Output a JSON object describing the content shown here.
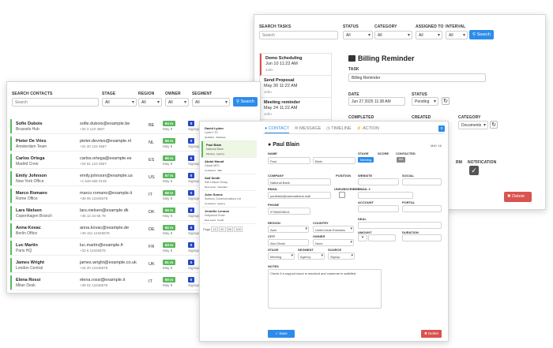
{
  "tasks_panel": {
    "search_label": "SEARCH TASKS",
    "search_placeholder": "Search",
    "status_label": "STATUS",
    "status_value": "All",
    "category_label": "CATEGORY",
    "category_value": "All",
    "assigned_label": "ASSIGNED TO",
    "assigned_value": "All",
    "interval_label": "INTERVAL",
    "interval_value": "All",
    "search_button": "Search",
    "items": [
      {
        "title": "Demo Scheduling",
        "date": "Jun 10 11:22 AM",
        "user": "John"
      },
      {
        "title": "Send Proposal",
        "date": "May 30 11:22 AM",
        "user": "John"
      },
      {
        "title": "Meeting reminder",
        "date": "May 24 11:22 AM",
        "user": "John"
      },
      {
        "title": "",
        "date": "",
        "user": ""
      }
    ],
    "detail_title": "Billing Reminder",
    "task_label": "TASK",
    "task_value": "Billing Reminder",
    "date_label": "DATE",
    "date_value": "Jun 27 2025 11:38 AM",
    "status2_label": "STATUS",
    "status2_value": "Pending",
    "completed_label": "COMPLETED",
    "created_label": "CREATED",
    "category2_label": "CATEGORY",
    "category2_value": "Documents",
    "notification_label": "NOTIFICATION",
    "partial_label": "RM",
    "delete_button": "Delete",
    "accent": "#d9534f"
  },
  "contacts_panel": {
    "search_label": "SEARCH CONTACTS",
    "search_placeholder": "Search",
    "stage_label": "STAGE",
    "stage_value": "All",
    "region_label": "REGION",
    "region_value": "All",
    "owner_label": "OWNER",
    "owner_value": "All",
    "segment_label": "SEGMENT",
    "segment_value": "All",
    "search_button": "Search",
    "rows": [
      {
        "name": "Sofie Dubois",
        "office": "Brussels Hub",
        "email": "sofie.dubois@example.be",
        "phone": "+32 2 123 4567",
        "country": "BE",
        "days": "64 m",
        "date": "May 8",
        "assigned": "0",
        "segment": "Signup"
      },
      {
        "name": "Pieter De Vries",
        "office": "Amsterdam Team",
        "email": "pieter.devries@example.nl",
        "phone": "+31 20 123 4567",
        "country": "NL",
        "days": "65 m",
        "date": "May 8",
        "assigned": "0",
        "segment": "Signup"
      },
      {
        "name": "Carlos Ortega",
        "office": "Madrid Crew",
        "email": "carlos.ortega@example.es",
        "phone": "+34 91 123 4567",
        "country": "ES",
        "days": "66 m",
        "date": "May 8",
        "assigned": "0",
        "segment": "Signup"
      },
      {
        "name": "Emily Johnson",
        "office": "New York Office",
        "email": "emily.johnson@example.us",
        "phone": "+1 646 555 0148",
        "country": "US",
        "days": "67 m",
        "date": "May 8",
        "assigned": "0",
        "segment": "Signup"
      },
      {
        "name": "Marco Romano",
        "office": "Rome Office",
        "email": "marco.romano@example.it",
        "phone": "+39 06 12345678",
        "country": "IT",
        "days": "68 m",
        "date": "May 8",
        "assigned": "0",
        "segment": "Signup"
      },
      {
        "name": "Lars Nielsen",
        "office": "Copenhagen Branch",
        "email": "lars.nielsen@example.dk",
        "phone": "+45 12 34 56 78",
        "country": "DK",
        "days": "69 m",
        "date": "May 8",
        "assigned": "0",
        "segment": "Signup"
      },
      {
        "name": "Anna Kovac",
        "office": "Berlin Office",
        "email": "anna.kovac@example.de",
        "phone": "+49 151 12345678",
        "country": "DE",
        "days": "62 m",
        "date": "May 8",
        "assigned": "0",
        "segment": "Signup"
      },
      {
        "name": "Luc Martin",
        "office": "Paris HQ",
        "email": "luc.martin@example.fr",
        "phone": "+33 6 12345678",
        "country": "FR",
        "days": "63 m",
        "date": "May 8",
        "assigned": "0",
        "segment": "Signup"
      },
      {
        "name": "James Wright",
        "office": "London Central",
        "email": "james.wright@example.co.uk",
        "phone": "+44 20 12345678",
        "country": "UK",
        "days": "61 m",
        "date": "May 8",
        "assigned": "0",
        "segment": "Signup"
      },
      {
        "name": "Elena Rossi",
        "office": "Milan Desk",
        "email": "elena.rossi@example.it",
        "phone": "+39 02 12345678",
        "country": "IT",
        "days": "60 m",
        "date": "May 8",
        "assigned": "0",
        "segment": "Signup"
      }
    ]
  },
  "detail_panel": {
    "tabs": [
      "CONTACT",
      "MESSAGE",
      "TIMELINE",
      "ACTION"
    ],
    "close_label": "x",
    "list": [
      {
        "name": "David Lydon",
        "company": "Lydon LTD",
        "tags": "Qualified · Stainless"
      },
      {
        "name": "Paul Blain",
        "company": "National Bank",
        "tags": "Meeting · Agency"
      },
      {
        "name": "Abdul Munaf",
        "company": "Global MFG",
        "tags": "Contacted · SEF"
      },
      {
        "name": "Saif Smith",
        "company": "Saif Leisure Group",
        "tags": "New Lead · Integrator"
      },
      {
        "name": "John Sonne",
        "company": "Sunbury Communications Ltd",
        "tags": "Contacted · Agency"
      },
      {
        "name": "Jennifer Lennon",
        "company": "Hollywood Road",
        "tags": "New Lead · Credit"
      }
    ],
    "pager": [
      "Page",
      "10",
      "20",
      "50",
      "100"
    ],
    "person_name": "Paul Blain",
    "date": "MAY 16",
    "name_label": "NAME",
    "first_name": "Paul",
    "last_name": "Blain",
    "stage_label": "STAGE",
    "stage_value": "Meeting",
    "score_label": "SCORE",
    "contacted_label": "CONTACTED",
    "contacted_value": "N/A",
    "company_label": "COMPANY",
    "company_value": "National Bank",
    "position_label": "POSITION",
    "website_label": "WEBSITE",
    "social_label": "SOCIAL",
    "email_label": "EMAIL",
    "email_value": "paulblain@nationalbank.mail",
    "unsubscribed_label": "UNSUBSCRIBED",
    "email2_label": "EMAIL 2",
    "phone_label": "PHONE",
    "phone_value": "97984006614",
    "account_label": "ACCOUNT",
    "portal_label": "PORTAL",
    "deal_label": "DEAL",
    "region_label": "REGION",
    "region_value": "Asia",
    "country_label": "COUNTRY",
    "country_value": "United Arab Emirates",
    "amount_label": "AMOUNT",
    "duration_label": "DURATION",
    "city_label": "CITY",
    "city_value": "Abu Dhabi",
    "owner_label": "OWNER",
    "owner_value": "None",
    "stage2_label": "STAGE",
    "stage2_value": "Meeting",
    "segment_label": "SEGMENT",
    "segment_value": "Agency",
    "source_label": "SOURCE",
    "source_value": "Signup",
    "notes_label": "NOTES",
    "notes_value": "Check if a support issue is resolved and customer is satisfied.",
    "save_button": "Save",
    "delete_button": "Delete"
  }
}
